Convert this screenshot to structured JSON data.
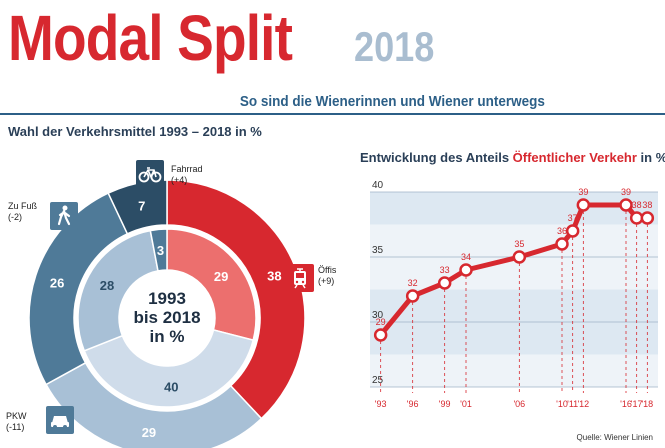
{
  "header": {
    "title": "Modal Split",
    "year": "2018",
    "subtitle": "So sind die Wienerinnen und Wiener unterwegs"
  },
  "left_heading": "Wahl der Verkehrsmittel 1993 – 2018 in %",
  "right_heading": {
    "prefix": "Entwicklung des Anteils ",
    "highlight": "Öffentlicher Verkehr",
    "suffix": " in %"
  },
  "source": "Quelle: Wiener Linien",
  "center_label": [
    "1993",
    "bis 2018",
    "in %"
  ],
  "legend_labels": {
    "fahrrad": {
      "name": "Fahrrad",
      "change": "(+4)"
    },
    "fuss": {
      "name": "Zu Fuß",
      "change": "(-2)"
    },
    "oeffis": {
      "name": "Öffis",
      "change": "(+9)"
    },
    "pkw": {
      "name": "PKW",
      "change": "(-11)"
    }
  },
  "icons": {
    "fahrrad": "bicycle-icon",
    "fuss": "pedestrian-icon",
    "oeffis": "tram-icon",
    "pkw": "car-icon"
  },
  "colors": {
    "red": "#d7282f",
    "red_light": "#ec6f6e",
    "dark_blue": "#2c4d66",
    "mid_blue": "#4f7a98",
    "light_blue": "#a8c0d6",
    "pale_blue": "#cfdcea"
  },
  "chart_data": [
    {
      "type": "pie",
      "variant": "double-donut",
      "inner_ring_year": "1993",
      "outer_ring_year": "2018",
      "categories": [
        "Öffis",
        "PKW",
        "Zu Fuß",
        "Fahrrad"
      ],
      "inner_values": [
        29,
        40,
        28,
        3
      ],
      "outer_values": [
        38,
        29,
        26,
        7
      ]
    },
    {
      "type": "line",
      "title": "Entwicklung des Anteils Öffentlicher Verkehr in %",
      "x": [
        1993,
        1996,
        1999,
        2001,
        2006,
        2010,
        2011,
        2012,
        2016,
        2017,
        2018
      ],
      "x_tick_labels": [
        "'93",
        "'96",
        "'99",
        "'01",
        "'06",
        "'10",
        "'11",
        "'12",
        "'16",
        "'17",
        "'18"
      ],
      "values": [
        29,
        32,
        33,
        34,
        35,
        36,
        37,
        39,
        39,
        38,
        38
      ],
      "y_ticks": [
        25,
        30,
        35,
        40
      ],
      "ylim": [
        25,
        40
      ],
      "grid": true
    }
  ]
}
